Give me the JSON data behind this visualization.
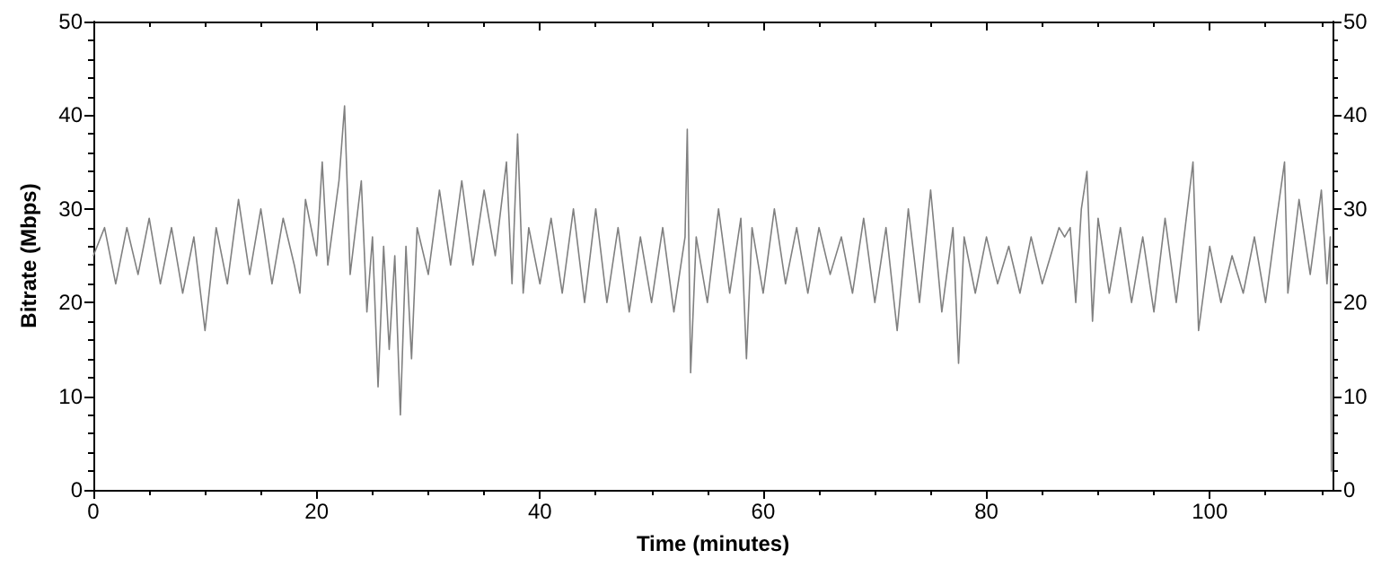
{
  "chart_data": {
    "type": "line",
    "xlabel": "Time (minutes)",
    "ylabel": "Bitrate (Mbps)",
    "marker": "none",
    "line_style": "solid",
    "xlim": [
      0,
      111
    ],
    "xticks": [
      0,
      20,
      40,
      60,
      80,
      100
    ],
    "ylim": [
      0,
      50
    ],
    "yticks": [
      0,
      10,
      20,
      30,
      40,
      50
    ],
    "y2lim": [
      0,
      50
    ],
    "y2ticks": [
      0,
      10,
      20,
      30,
      40,
      50
    ],
    "series": [
      {
        "color": "#808080",
        "x": [
          0,
          1,
          2,
          3,
          4,
          5,
          6,
          7,
          8,
          9,
          10,
          11,
          12,
          13,
          14,
          15,
          16,
          17,
          18,
          18.5,
          19,
          20,
          20.5,
          21,
          22,
          22.5,
          23,
          24,
          24.5,
          25,
          25.5,
          26,
          26.5,
          27,
          27.5,
          28,
          28.5,
          29,
          30,
          31,
          32,
          33,
          34,
          35,
          36,
          37,
          37.5,
          38,
          38.5,
          39,
          40,
          41,
          42,
          43,
          44,
          45,
          46,
          47,
          48,
          49,
          50,
          51,
          52,
          53,
          53.2,
          53.5,
          54,
          55,
          56,
          57,
          58,
          58.5,
          59,
          60,
          61,
          62,
          63,
          64,
          65,
          66,
          67,
          68,
          69,
          70,
          71,
          72,
          73,
          74,
          75,
          76,
          77,
          77.5,
          78,
          79,
          80,
          81,
          82,
          83,
          84,
          85,
          86,
          86.5,
          87,
          87.5,
          88,
          88.5,
          89,
          89.5,
          90,
          91,
          92,
          93,
          94,
          95,
          96,
          97,
          98,
          98.5,
          99,
          100,
          101,
          102,
          103,
          104,
          105,
          106,
          106.7,
          107,
          108,
          109,
          110,
          110.5,
          110.8,
          110.9
        ],
        "values": [
          25,
          28,
          22,
          28,
          23,
          29,
          22,
          28,
          21,
          27,
          17,
          28,
          22,
          31,
          23,
          30,
          22,
          29,
          24,
          21,
          31,
          25,
          35,
          24,
          33,
          41,
          23,
          33,
          19,
          27,
          11,
          26,
          15,
          25,
          8,
          26,
          14,
          28,
          23,
          32,
          24,
          33,
          24,
          32,
          25,
          35,
          22,
          38,
          21,
          28,
          22,
          29,
          21,
          30,
          20,
          30,
          20,
          28,
          19,
          27,
          20,
          28,
          19,
          27,
          38.5,
          12.5,
          27,
          20,
          30,
          21,
          29,
          14,
          28,
          21,
          30,
          22,
          28,
          21,
          28,
          23,
          27,
          21,
          29,
          20,
          28,
          17,
          30,
          20,
          32,
          19,
          28,
          13.5,
          27,
          21,
          27,
          22,
          26,
          21,
          27,
          22,
          26,
          28,
          27,
          28,
          20,
          30,
          34,
          18,
          29,
          21,
          28,
          20,
          27,
          19,
          29,
          20,
          30,
          35,
          17,
          26,
          20,
          25,
          21,
          27,
          20,
          29,
          35,
          21,
          31,
          23,
          32,
          22,
          27,
          2
        ]
      }
    ]
  }
}
